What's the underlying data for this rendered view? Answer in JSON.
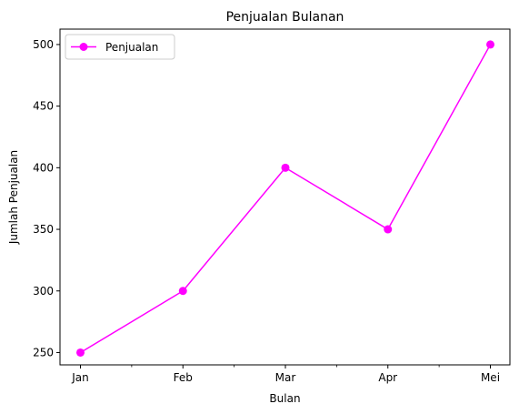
{
  "chart_data": {
    "type": "line",
    "title": "Penjualan Bulanan",
    "xlabel": "Bulan",
    "ylabel": "Jumlah Penjualan",
    "categories": [
      "Jan",
      "Feb",
      "Mar",
      "Apr",
      "Mei"
    ],
    "series": [
      {
        "name": "Penjualan",
        "values": [
          250,
          300,
          400,
          350,
          500
        ],
        "color": "#ff00ff",
        "marker": "circle"
      }
    ],
    "yticks": [
      250,
      300,
      350,
      400,
      450,
      500
    ],
    "ylim": [
      240,
      512.5
    ],
    "legend": "top-left",
    "grid": false
  }
}
